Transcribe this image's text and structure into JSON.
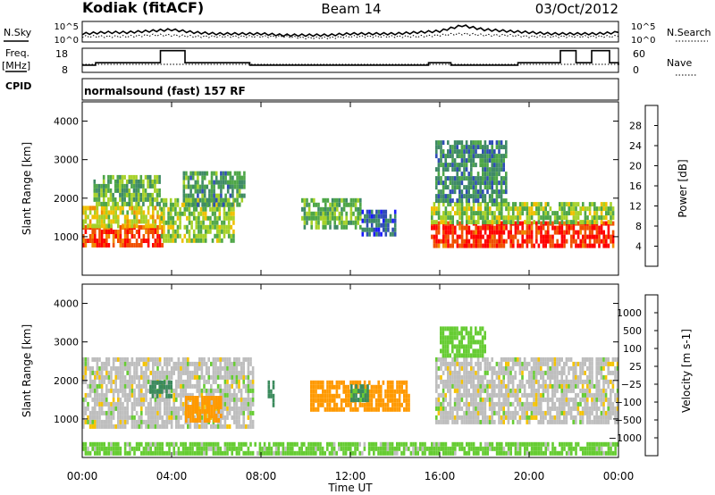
{
  "header": {
    "station": "Kodiak (fitACF)",
    "beam": "Beam 14",
    "date": "03/Oct/2012"
  },
  "strips": {
    "nsky_label": "N.Sky",
    "nsearch_label": "N.Search",
    "noise_ticks": [
      "10^5",
      "10^0"
    ],
    "freq_label": "Freq.",
    "freq_unit": "[MHz]",
    "freq_ticks": [
      "18",
      "8"
    ],
    "nave_label": "Nave",
    "nave_ticks": [
      "60",
      "0"
    ],
    "cpid_label": "CPID",
    "cpid_text": "normalsound (fast) 157 RF"
  },
  "colors": {
    "power_scale": [
      "#1a1aff",
      "#2f4db5",
      "#3f8a66",
      "#4ea648",
      "#a6d128",
      "#f0c000",
      "#f08c00",
      "#f05000",
      "#ff0000"
    ],
    "velocity_scale": [
      "#ff0000",
      "#ff6000",
      "#ff9900",
      "#f5c300",
      "#bebebe",
      "#bebebe",
      "#66cc33",
      "#3a8a5c",
      "#3050b0",
      "#1a1acc"
    ]
  },
  "chart_data": [
    {
      "type": "line",
      "panel": "noise",
      "series": [
        {
          "name": "N.Sky",
          "x": [
            0,
            1,
            2,
            3,
            4,
            5,
            6,
            7,
            8,
            9,
            10,
            11,
            12,
            13,
            14,
            15,
            16,
            17,
            18,
            19,
            20,
            21,
            22,
            23,
            24
          ],
          "values": [
            6,
            7,
            7,
            8,
            9,
            7,
            6,
            6,
            6,
            5,
            5,
            5,
            6,
            6,
            6,
            7,
            8,
            12,
            9,
            8,
            7,
            6,
            6,
            6,
            7
          ]
        },
        {
          "name": "N.Search",
          "x": [
            0,
            1,
            2,
            3,
            4,
            5,
            6,
            7,
            8,
            9,
            10,
            11,
            12,
            13,
            14,
            15,
            16,
            17,
            18,
            19,
            20,
            21,
            22,
            23,
            24
          ],
          "values": [
            4,
            4,
            4,
            5,
            5,
            4,
            4,
            4,
            4,
            4,
            3,
            3,
            4,
            4,
            4,
            4,
            5,
            6,
            5,
            5,
            4,
            4,
            4,
            4,
            4
          ]
        }
      ]
    },
    {
      "type": "line",
      "panel": "frequency_nave",
      "yrange_freq": [
        8,
        18
      ],
      "yrange_nave": [
        0,
        60
      ],
      "series": [
        {
          "name": "Freq.",
          "x": [
            0,
            0.6,
            1.5,
            2.6,
            3.5,
            4.6,
            5.6,
            6.4,
            7.5,
            8.5,
            9.5,
            10.5,
            11.5,
            12.5,
            13.5,
            14.5,
            15.5,
            16.5,
            17.5,
            18.5,
            19.5,
            20.5,
            21.4,
            22.1,
            22.8,
            23.6,
            24
          ],
          "values": [
            11,
            12,
            12,
            12,
            17,
            12,
            12,
            12,
            11,
            11,
            11,
            11,
            11,
            11,
            11,
            11,
            12,
            11,
            11,
            11,
            12,
            12,
            17,
            12,
            17,
            12,
            11
          ]
        },
        {
          "name": "Nave",
          "x": [
            0,
            24
          ],
          "values": [
            20,
            20
          ]
        }
      ]
    },
    {
      "type": "heatmap",
      "title": "",
      "xlabel": "Time UT",
      "ylabel": "Slant Range [km]",
      "xlim": [
        0,
        24
      ],
      "ylim": [
        0,
        4500
      ],
      "x_ticks": [
        "00:00",
        "04:00",
        "08:00",
        "12:00",
        "16:00",
        "20:00",
        "00:00"
      ],
      "y_ticks": [
        "1000",
        "2000",
        "3000",
        "4000"
      ],
      "colorbar_label": "Power [dB]",
      "colorbar_ticks": [
        "4",
        "8",
        "12",
        "16",
        "20",
        "24",
        "28"
      ],
      "zlim": [
        0,
        30
      ],
      "series": [
        {
          "x_start": 0.0,
          "x_end": 3.6,
          "y_start": 800,
          "y_end": 1300,
          "value": 26
        },
        {
          "x_start": 0.0,
          "x_end": 3.6,
          "y_start": 1300,
          "y_end": 1800,
          "value": 17
        },
        {
          "x_start": 0.5,
          "x_end": 3.5,
          "y_start": 1800,
          "y_end": 2600,
          "value": 12
        },
        {
          "x_start": 3.5,
          "x_end": 6.8,
          "y_start": 900,
          "y_end": 2000,
          "value": 14
        },
        {
          "x_start": 4.5,
          "x_end": 7.3,
          "y_start": 1800,
          "y_end": 2700,
          "value": 10
        },
        {
          "x_start": 9.8,
          "x_end": 12.5,
          "y_start": 1300,
          "y_end": 2000,
          "value": 12
        },
        {
          "x_start": 12.5,
          "x_end": 14.0,
          "y_start": 1100,
          "y_end": 1700,
          "value": 6
        },
        {
          "x_start": 15.6,
          "x_end": 23.8,
          "y_start": 800,
          "y_end": 1400,
          "value": 27
        },
        {
          "x_start": 15.6,
          "x_end": 23.8,
          "y_start": 1400,
          "y_end": 1900,
          "value": 14
        },
        {
          "x_start": 15.8,
          "x_end": 19.0,
          "y_start": 1900,
          "y_end": 3500,
          "value": 9
        }
      ]
    },
    {
      "type": "heatmap",
      "title": "",
      "xlabel": "Time UT",
      "ylabel": "Slant Range [km]",
      "xlim": [
        0,
        24
      ],
      "ylim": [
        0,
        4500
      ],
      "x_ticks": [
        "00:00",
        "04:00",
        "08:00",
        "12:00",
        "16:00",
        "20:00",
        "00:00"
      ],
      "y_ticks": [
        "1000",
        "2000",
        "3000",
        "4000"
      ],
      "colorbar_label": "Velocity [m s-1]",
      "colorbar_ticks": [
        "1000",
        "500",
        "100",
        "25",
        "−25",
        "−100",
        "−500",
        "−1000"
      ],
      "zlim": [
        -1200,
        1200
      ],
      "series": [
        {
          "x_start": 0.0,
          "x_end": 7.6,
          "y_start": 800,
          "y_end": 2600,
          "value": 0
        },
        {
          "x_start": 3.0,
          "x_end": 4.0,
          "y_start": 1600,
          "y_end": 2000,
          "value": 200
        },
        {
          "x_start": 4.6,
          "x_end": 6.2,
          "y_start": 1000,
          "y_end": 1600,
          "value": -150
        },
        {
          "x_start": 8.3,
          "x_end": 8.6,
          "y_start": 1400,
          "y_end": 2000,
          "value": 150
        },
        {
          "x_start": 10.2,
          "x_end": 14.6,
          "y_start": 1200,
          "y_end": 2000,
          "value": -250
        },
        {
          "x_start": 12.0,
          "x_end": 12.8,
          "y_start": 1500,
          "y_end": 1900,
          "value": 120
        },
        {
          "x_start": 15.8,
          "x_end": 24.0,
          "y_start": 900,
          "y_end": 2600,
          "value": 0
        },
        {
          "x_start": 16.0,
          "x_end": 18.0,
          "y_start": 2600,
          "y_end": 3400,
          "value": 60
        },
        {
          "x_start": 0.0,
          "x_end": 24.0,
          "y_start": 100,
          "y_end": 400,
          "value": 50
        }
      ]
    }
  ]
}
